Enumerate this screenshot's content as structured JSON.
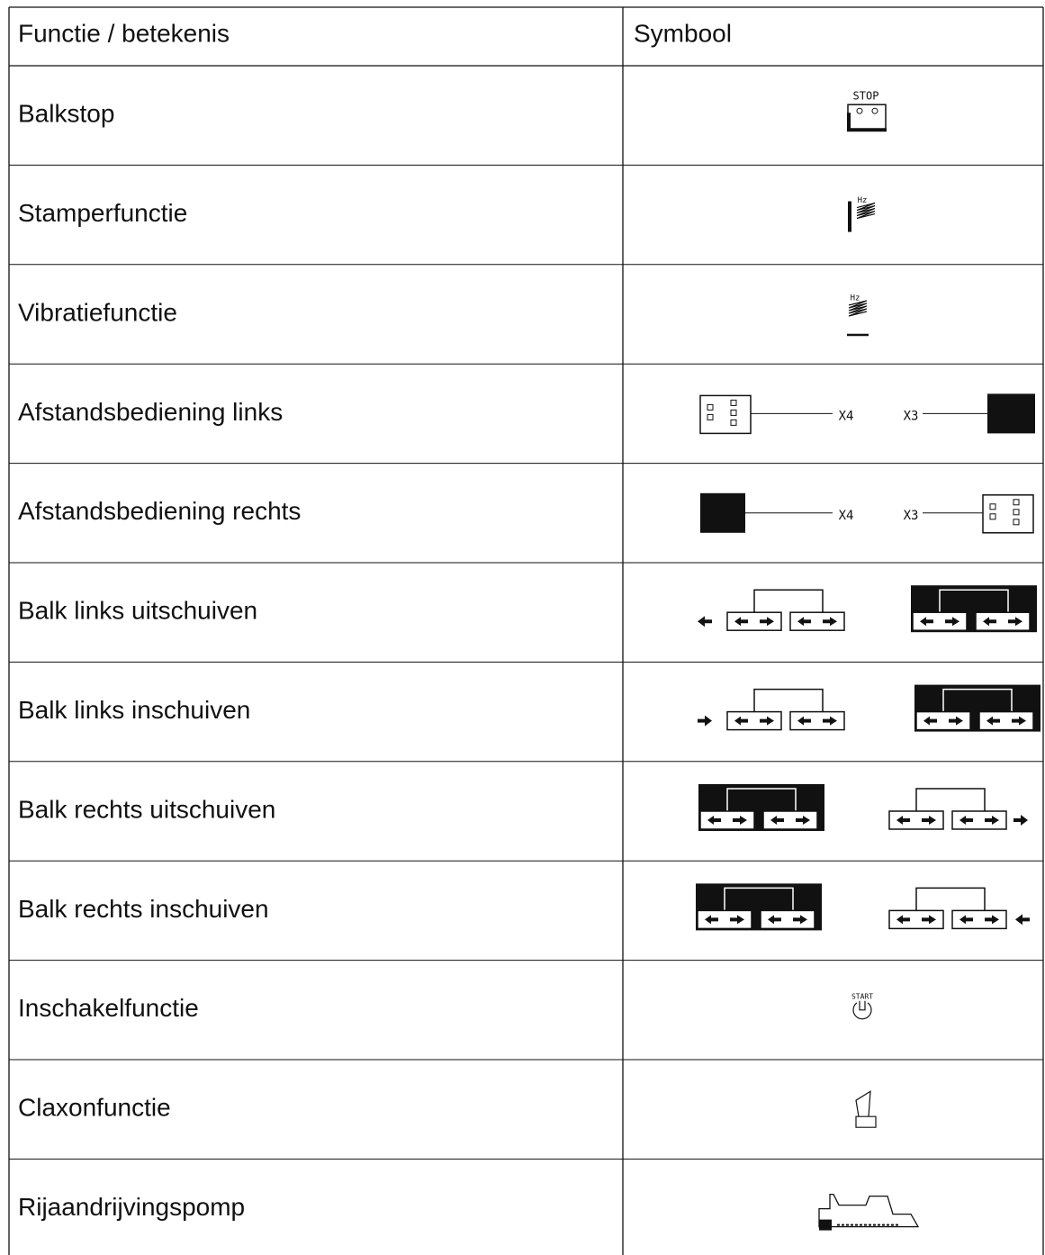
{
  "header": {
    "function": "Functie / betekenis",
    "symbol": "Symbool"
  },
  "rows": [
    {
      "function": "Balkstop",
      "symbol_labels": [
        "STOP"
      ]
    },
    {
      "function": "Stamperfunctie",
      "symbol_labels": [
        "Hz"
      ]
    },
    {
      "function": "Vibratiefunctie",
      "symbol_labels": [
        "Hz"
      ]
    },
    {
      "function": "Afstandsbediening links",
      "symbol_labels": [
        "X4",
        "X3"
      ]
    },
    {
      "function": "Afstandsbediening rechts",
      "symbol_labels": [
        "X4",
        "X3"
      ]
    },
    {
      "function": "Balk links uitschuiven"
    },
    {
      "function": "Balk links inschuiven"
    },
    {
      "function": "Balk rechts uitschuiven"
    },
    {
      "function": "Balk rechts inschuiven"
    },
    {
      "function": "Inschakelfunctie",
      "symbol_labels": [
        "START"
      ]
    },
    {
      "function": "Claxonfunctie"
    },
    {
      "function": "Rijaandrijvingspomp"
    }
  ]
}
